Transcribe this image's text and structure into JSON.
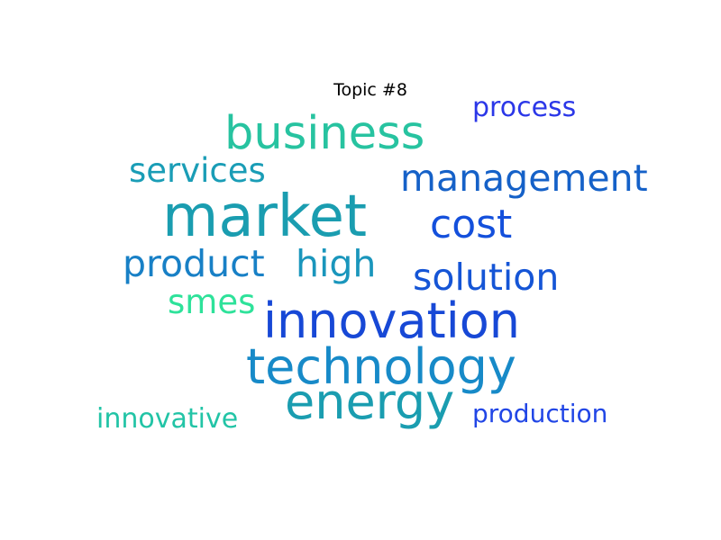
{
  "title": "Topic #8",
  "words": {
    "market": {
      "text": "market",
      "color": "#1a9db0"
    },
    "business": {
      "text": "business",
      "color": "#27c3a0"
    },
    "innovation": {
      "text": "innovation",
      "color": "#1748d6"
    },
    "technology": {
      "text": "technology",
      "color": "#178ac8"
    },
    "energy": {
      "text": "energy",
      "color": "#1a9db0"
    },
    "management": {
      "text": "management",
      "color": "#1561c8"
    },
    "cost": {
      "text": "cost",
      "color": "#1450dc"
    },
    "services": {
      "text": "services",
      "color": "#1a9db6"
    },
    "product": {
      "text": "product",
      "color": "#1880c6"
    },
    "high": {
      "text": "high",
      "color": "#1a96bc"
    },
    "solution": {
      "text": "solution",
      "color": "#1555d6"
    },
    "smes": {
      "text": "smes",
      "color": "#2ee29a"
    },
    "process": {
      "text": "process",
      "color": "#2b37e8"
    },
    "innovative": {
      "text": "innovative",
      "color": "#22c4a6"
    },
    "production": {
      "text": "production",
      "color": "#2146e6"
    }
  }
}
